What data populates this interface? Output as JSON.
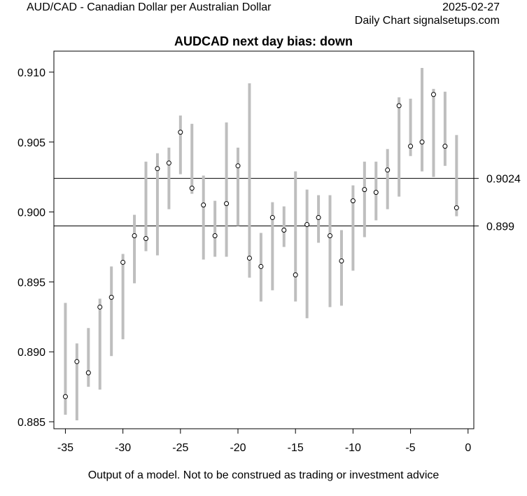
{
  "header": {
    "pair": "AUD/CAD - Canadian Dollar per Australian Dollar",
    "date": "2025-02-27",
    "source": "Daily Chart signalsetups.com"
  },
  "footer": {
    "note": "Output of a model. Not to be construed as trading or investment advice"
  },
  "colors": {
    "range_bar": "#bebebe",
    "point": "#000000",
    "reference_line": "#000000",
    "background": "#ffffff"
  },
  "chart_data": {
    "type": "scatter",
    "title": "AUDCAD next day bias: down",
    "xlabel": "",
    "ylabel": "",
    "xlim": [
      -36,
      0.5
    ],
    "ylim": [
      0.8845,
      0.9115
    ],
    "x_ticks": [
      -35,
      -30,
      -25,
      -20,
      -15,
      -10,
      -5,
      0
    ],
    "x_tick_labels": [
      "-35",
      "-30",
      "-25",
      "-20",
      "-15",
      "-10",
      "-5",
      "0"
    ],
    "y_ticks": [
      0.885,
      0.89,
      0.895,
      0.9,
      0.905,
      0.91
    ],
    "y_tick_labels": [
      "0.885",
      "0.890",
      "0.895",
      "0.900",
      "0.905",
      "0.910"
    ],
    "grid": false,
    "reference_lines": [
      {
        "y": 0.9024,
        "label": "0.9024"
      },
      {
        "y": 0.899,
        "label": "0.899"
      }
    ],
    "points": [
      {
        "x": -35,
        "low": 0.8855,
        "high": 0.8935,
        "close": 0.8868
      },
      {
        "x": -34,
        "low": 0.8851,
        "high": 0.8906,
        "close": 0.8893
      },
      {
        "x": -33,
        "low": 0.8875,
        "high": 0.8917,
        "close": 0.8885
      },
      {
        "x": -32,
        "low": 0.8873,
        "high": 0.8938,
        "close": 0.8932
      },
      {
        "x": -31,
        "low": 0.8897,
        "high": 0.8961,
        "close": 0.8939
      },
      {
        "x": -30,
        "low": 0.8909,
        "high": 0.897,
        "close": 0.8964
      },
      {
        "x": -29,
        "low": 0.8949,
        "high": 0.8998,
        "close": 0.8983
      },
      {
        "x": -28,
        "low": 0.8972,
        "high": 0.9036,
        "close": 0.8981
      },
      {
        "x": -27,
        "low": 0.8969,
        "high": 0.9042,
        "close": 0.9031
      },
      {
        "x": -26,
        "low": 0.9002,
        "high": 0.9046,
        "close": 0.9035
      },
      {
        "x": -25,
        "low": 0.9027,
        "high": 0.9069,
        "close": 0.9057
      },
      {
        "x": -24,
        "low": 0.9013,
        "high": 0.9063,
        "close": 0.9017
      },
      {
        "x": -23,
        "low": 0.8966,
        "high": 0.9026,
        "close": 0.9005
      },
      {
        "x": -22,
        "low": 0.8968,
        "high": 0.9008,
        "close": 0.8983
      },
      {
        "x": -21,
        "low": 0.8968,
        "high": 0.9064,
        "close": 0.9006
      },
      {
        "x": -20,
        "low": 0.899,
        "high": 0.9046,
        "close": 0.9033
      },
      {
        "x": -19,
        "low": 0.8953,
        "high": 0.9092,
        "close": 0.8967
      },
      {
        "x": -18,
        "low": 0.8936,
        "high": 0.8985,
        "close": 0.8961
      },
      {
        "x": -17,
        "low": 0.8944,
        "high": 0.9007,
        "close": 0.8996
      },
      {
        "x": -16,
        "low": 0.8975,
        "high": 0.9004,
        "close": 0.8987
      },
      {
        "x": -15,
        "low": 0.8936,
        "high": 0.9029,
        "close": 0.8955
      },
      {
        "x": -14,
        "low": 0.8924,
        "high": 0.9016,
        "close": 0.8991
      },
      {
        "x": -13,
        "low": 0.8978,
        "high": 0.9012,
        "close": 0.8996
      },
      {
        "x": -12,
        "low": 0.8932,
        "high": 0.9012,
        "close": 0.8983
      },
      {
        "x": -11,
        "low": 0.8933,
        "high": 0.8987,
        "close": 0.8965
      },
      {
        "x": -10,
        "low": 0.8958,
        "high": 0.9019,
        "close": 0.9008
      },
      {
        "x": -9,
        "low": 0.8982,
        "high": 0.9036,
        "close": 0.9016
      },
      {
        "x": -8,
        "low": 0.8994,
        "high": 0.9036,
        "close": 0.9014
      },
      {
        "x": -7,
        "low": 0.9002,
        "high": 0.9045,
        "close": 0.903
      },
      {
        "x": -6,
        "low": 0.9011,
        "high": 0.9082,
        "close": 0.9076
      },
      {
        "x": -5,
        "low": 0.904,
        "high": 0.9081,
        "close": 0.9047
      },
      {
        "x": -4,
        "low": 0.9029,
        "high": 0.9103,
        "close": 0.905
      },
      {
        "x": -3,
        "low": 0.9025,
        "high": 0.9088,
        "close": 0.9084
      },
      {
        "x": -2,
        "low": 0.9033,
        "high": 0.9086,
        "close": 0.9047
      },
      {
        "x": -1,
        "low": 0.8997,
        "high": 0.9055,
        "close": 0.9003
      }
    ]
  }
}
